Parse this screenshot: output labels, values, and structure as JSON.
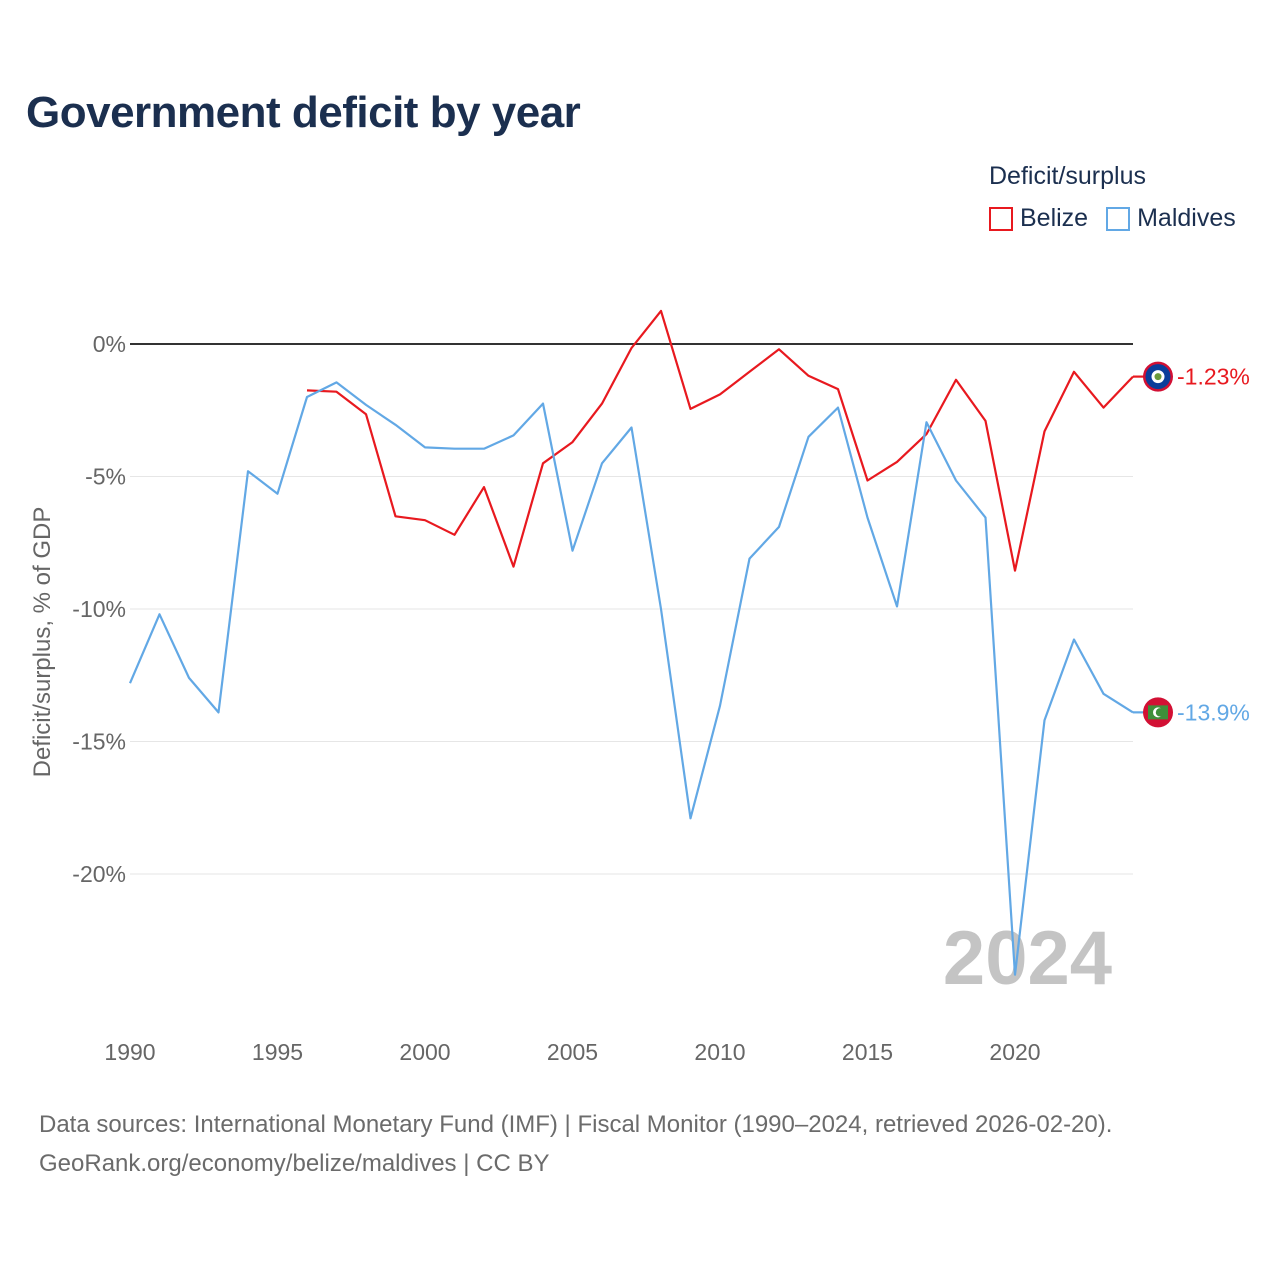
{
  "title": "Government deficit by year",
  "legend": {
    "title": "Deficit/surplus",
    "items": [
      {
        "label": "Belize",
        "color": "#e8191f"
      },
      {
        "label": "Maldives",
        "color": "#62a8e5"
      }
    ]
  },
  "footer": {
    "line1": "Data sources: International Monetary Fund (IMF) | Fiscal Monitor (1990–2024, retrieved 2026-02-20).",
    "line2": "GeoRank.org/economy/belize/maldives | CC BY"
  },
  "chart_data": {
    "type": "line",
    "title": "Government deficit by year",
    "ylabel": "Deficit/surplus, % of GDP",
    "xlabel": "",
    "xlim": [
      1990,
      2024
    ],
    "ylim": [
      -25,
      3
    ],
    "yticks": [
      0,
      -5,
      -10,
      -15,
      -20
    ],
    "ytick_labels": [
      "0%",
      "-5%",
      "-10%",
      "-15%",
      "-20%"
    ],
    "xticks": [
      1990,
      1995,
      2000,
      2005,
      2010,
      2015,
      2020
    ],
    "xtick_labels": [
      "1990",
      "1995",
      "2000",
      "2005",
      "2010",
      "2015",
      "2020"
    ],
    "year_watermark": "2024",
    "series": [
      {
        "name": "Belize",
        "color": "#e8191f",
        "end_label": "-1.23%",
        "x": [
          1996,
          1997,
          1998,
          1999,
          2000,
          2001,
          2002,
          2003,
          2004,
          2005,
          2006,
          2007,
          2008,
          2009,
          2010,
          2011,
          2012,
          2013,
          2014,
          2015,
          2016,
          2017,
          2018,
          2019,
          2020,
          2021,
          2022,
          2023,
          2024
        ],
        "values": [
          -1.75,
          -1.8,
          -2.65,
          -6.5,
          -6.65,
          -7.2,
          -5.4,
          -8.4,
          -4.5,
          -3.7,
          -2.25,
          -0.15,
          1.25,
          -2.45,
          -1.9,
          -1.05,
          -0.2,
          -1.2,
          -1.7,
          -5.15,
          -4.45,
          -3.4,
          -1.35,
          -2.9,
          -8.55,
          -3.3,
          -1.05,
          -2.4,
          -1.23
        ]
      },
      {
        "name": "Maldives",
        "color": "#62a8e5",
        "end_label": "-13.9%",
        "x": [
          1990,
          1991,
          1992,
          1993,
          1994,
          1995,
          1996,
          1997,
          1998,
          1999,
          2000,
          2001,
          2002,
          2003,
          2004,
          2005,
          2006,
          2007,
          2008,
          2009,
          2010,
          2011,
          2012,
          2013,
          2014,
          2015,
          2016,
          2017,
          2018,
          2019,
          2020,
          2021,
          2022,
          2023,
          2024
        ],
        "values": [
          -12.8,
          -10.2,
          -12.6,
          -13.9,
          -4.8,
          -5.65,
          -2.0,
          -1.45,
          -2.3,
          -3.05,
          -3.9,
          -3.95,
          -3.95,
          -3.45,
          -2.25,
          -7.8,
          -4.5,
          -3.15,
          -10.0,
          -17.9,
          -13.65,
          -8.1,
          -6.9,
          -3.5,
          -2.4,
          -6.55,
          -9.9,
          -2.95,
          -5.15,
          -6.55,
          -23.8,
          -14.2,
          -11.15,
          -13.2,
          -13.9
        ]
      }
    ]
  }
}
